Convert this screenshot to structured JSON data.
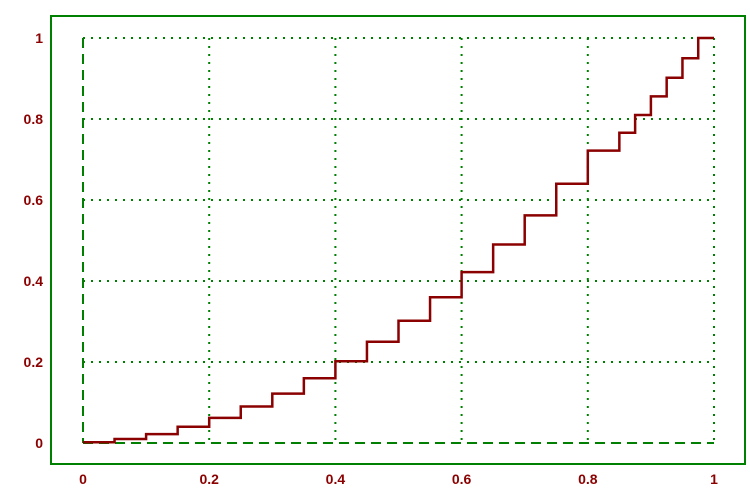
{
  "chart_data": {
    "type": "line",
    "step": true,
    "title": "",
    "xlabel": "",
    "ylabel": "",
    "xlim": [
      0,
      1
    ],
    "ylim": [
      0,
      1
    ],
    "grid": true,
    "x_ticks": [
      "0",
      "0.2",
      "0.4",
      "0.6",
      "0.8",
      "1"
    ],
    "y_ticks": [
      "0",
      "0.2",
      "0.4",
      "0.6",
      "0.8",
      "1"
    ],
    "colors": {
      "frame": "#008000",
      "grid": "#008000",
      "series": "#8b0000",
      "tick_labels": "#8b0000"
    },
    "series": [
      {
        "x": [
          0,
          0.05,
          0.1,
          0.15,
          0.2,
          0.25,
          0.3,
          0.35,
          0.4,
          0.45,
          0.5,
          0.55,
          0.6,
          0.65,
          0.7,
          0.75,
          0.8,
          0.85,
          0.875,
          0.9,
          0.925,
          0.95,
          0.975,
          1.0
        ],
        "y": [
          0.002,
          0.01,
          0.022,
          0.04,
          0.062,
          0.09,
          0.122,
          0.16,
          0.202,
          0.25,
          0.302,
          0.36,
          0.422,
          0.49,
          0.562,
          0.64,
          0.722,
          0.766,
          0.81,
          0.856,
          0.902,
          0.95,
          1.0,
          1.0
        ]
      }
    ]
  }
}
